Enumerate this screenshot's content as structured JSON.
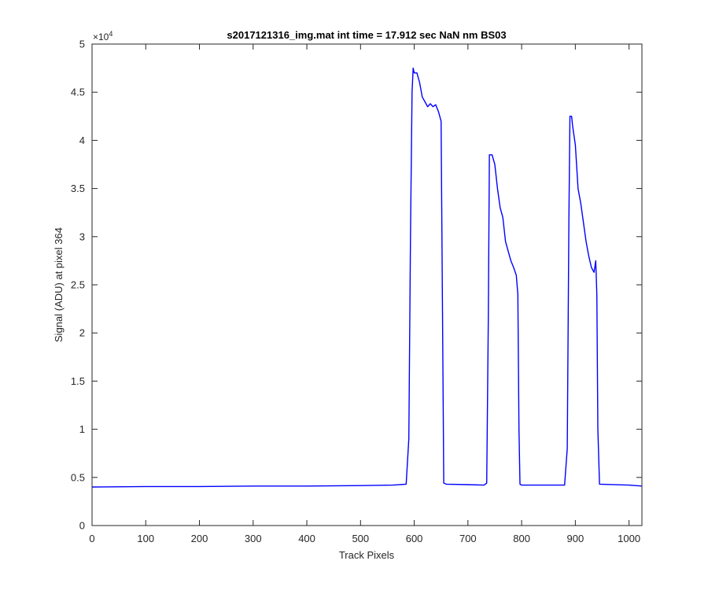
{
  "chart_data": {
    "type": "line",
    "title": "s2017121316_img.mat int time = 17.912 sec  NaN nm BS03",
    "xlabel": "Track Pixels",
    "ylabel": "Signal (ADU) at pixel 364",
    "xlim": [
      0,
      1024
    ],
    "ylim": [
      0,
      50000
    ],
    "y_multiplier_label": "×10",
    "y_multiplier_exponent": "4",
    "xticks": [
      0,
      100,
      200,
      300,
      400,
      500,
      600,
      700,
      800,
      900,
      1000
    ],
    "xtick_labels": [
      "0",
      "100",
      "200",
      "300",
      "400",
      "500",
      "600",
      "700",
      "800",
      "900",
      "1000"
    ],
    "yticks": [
      0,
      5000,
      10000,
      15000,
      20000,
      25000,
      30000,
      35000,
      40000,
      45000,
      50000
    ],
    "ytick_labels": [
      "0",
      "0.5",
      "1",
      "1.5",
      "2",
      "2.5",
      "3",
      "3.5",
      "4",
      "4.5",
      "5"
    ],
    "grid": false,
    "series": [
      {
        "color": "#0000ff",
        "x": [
          0,
          100,
          200,
          300,
          400,
          500,
          560,
          585,
          590,
          593,
          596,
          598,
          600,
          605,
          610,
          615,
          620,
          625,
          630,
          635,
          640,
          645,
          650,
          653,
          655,
          660,
          700,
          730,
          735,
          738,
          740,
          745,
          750,
          755,
          760,
          765,
          770,
          775,
          780,
          785,
          790,
          793,
          795,
          797,
          800,
          830,
          880,
          885,
          888,
          890,
          893,
          895,
          900,
          905,
          910,
          915,
          920,
          925,
          930,
          935,
          938,
          940,
          942,
          945,
          1000,
          1024
        ],
        "y": [
          4000,
          4050,
          4050,
          4100,
          4100,
          4150,
          4200,
          4300,
          9000,
          30000,
          45000,
          47500,
          47000,
          47000,
          46000,
          44500,
          44000,
          43500,
          43800,
          43500,
          43700,
          43000,
          42000,
          20000,
          4400,
          4300,
          4250,
          4200,
          4400,
          22000,
          38500,
          38500,
          37500,
          35000,
          33000,
          32000,
          29500,
          28500,
          27500,
          26800,
          26000,
          24000,
          10000,
          4300,
          4200,
          4200,
          4200,
          8000,
          32000,
          42500,
          42500,
          41500,
          39500,
          35000,
          33500,
          31500,
          29500,
          28000,
          26800,
          26300,
          27500,
          24000,
          10000,
          4300,
          4200,
          4100
        ]
      }
    ]
  }
}
